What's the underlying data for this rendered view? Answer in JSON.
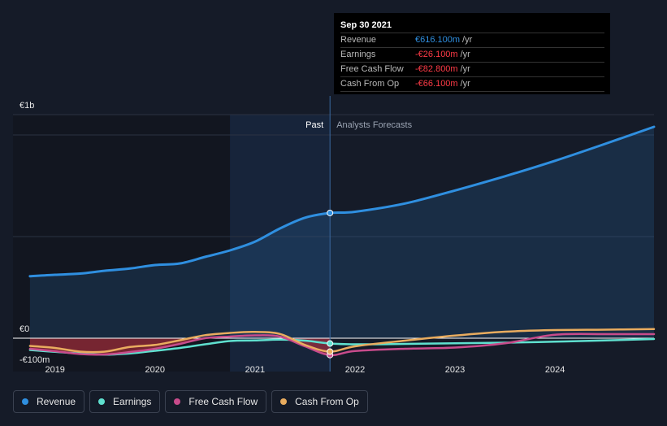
{
  "chart_data": {
    "type": "line",
    "y_unit": "€",
    "ylim": [
      -100,
      1000
    ],
    "y_ticks": [
      {
        "value": 1000,
        "label": "€1b"
      },
      {
        "value": 0,
        "label": "€0"
      },
      {
        "value": -100,
        "label": "-€100m"
      }
    ],
    "x_range": [
      2018.58,
      2024.99
    ],
    "x_ticks": [
      "2019",
      "2020",
      "2021",
      "2022",
      "2023",
      "2024"
    ],
    "divider_x": 2021.75,
    "past_label": "Past",
    "forecast_label": "Analysts Forecasts",
    "series": [
      {
        "name": "Revenue",
        "color": "#2f8fe0",
        "points": [
          [
            2018.75,
            305
          ],
          [
            2019.0,
            312
          ],
          [
            2019.25,
            318
          ],
          [
            2019.5,
            332
          ],
          [
            2019.75,
            343
          ],
          [
            2020.0,
            360
          ],
          [
            2020.25,
            368
          ],
          [
            2020.5,
            400
          ],
          [
            2020.75,
            432
          ],
          [
            2021.0,
            475
          ],
          [
            2021.25,
            540
          ],
          [
            2021.5,
            593
          ],
          [
            2021.75,
            616.1
          ],
          [
            2022.0,
            622
          ],
          [
            2022.5,
            663
          ],
          [
            2023.0,
            727
          ],
          [
            2023.5,
            797
          ],
          [
            2024.0,
            873
          ],
          [
            2024.5,
            956
          ],
          [
            2024.99,
            1040
          ]
        ]
      },
      {
        "name": "Earnings",
        "color": "#5fe0cf",
        "points": [
          [
            2018.75,
            -58
          ],
          [
            2019.0,
            -67
          ],
          [
            2019.25,
            -75
          ],
          [
            2019.5,
            -81
          ],
          [
            2019.75,
            -75
          ],
          [
            2020.0,
            -62
          ],
          [
            2020.25,
            -48
          ],
          [
            2020.5,
            -30
          ],
          [
            2020.75,
            -14
          ],
          [
            2021.0,
            -11
          ],
          [
            2021.25,
            -7
          ],
          [
            2021.5,
            -12
          ],
          [
            2021.75,
            -26.1
          ],
          [
            2022.0,
            -30
          ],
          [
            2022.5,
            -28
          ],
          [
            2023.0,
            -25
          ],
          [
            2023.5,
            -22
          ],
          [
            2024.0,
            -17
          ],
          [
            2024.5,
            -11
          ],
          [
            2024.99,
            -4
          ]
        ]
      },
      {
        "name": "Free Cash Flow",
        "color": "#c84b8b",
        "points": [
          [
            2018.75,
            -52
          ],
          [
            2019.0,
            -64
          ],
          [
            2019.25,
            -78
          ],
          [
            2019.5,
            -80
          ],
          [
            2019.75,
            -68
          ],
          [
            2020.0,
            -52
          ],
          [
            2020.25,
            -28
          ],
          [
            2020.5,
            0
          ],
          [
            2020.75,
            8
          ],
          [
            2021.0,
            14
          ],
          [
            2021.25,
            8
          ],
          [
            2021.5,
            -40
          ],
          [
            2021.75,
            -82.8
          ],
          [
            2022.0,
            -63
          ],
          [
            2022.5,
            -52
          ],
          [
            2023.0,
            -46
          ],
          [
            2023.5,
            -25
          ],
          [
            2024.0,
            17
          ],
          [
            2024.5,
            20
          ],
          [
            2024.99,
            20
          ]
        ]
      },
      {
        "name": "Cash From Op",
        "color": "#e9ac5f",
        "points": [
          [
            2018.75,
            -38
          ],
          [
            2019.0,
            -48
          ],
          [
            2019.25,
            -66
          ],
          [
            2019.5,
            -66
          ],
          [
            2019.75,
            -43
          ],
          [
            2020.0,
            -33
          ],
          [
            2020.25,
            -10
          ],
          [
            2020.5,
            15
          ],
          [
            2020.75,
            26
          ],
          [
            2021.0,
            31
          ],
          [
            2021.25,
            21
          ],
          [
            2021.5,
            -33
          ],
          [
            2021.75,
            -66.1
          ],
          [
            2022.0,
            -40
          ],
          [
            2022.5,
            -12
          ],
          [
            2023.0,
            13
          ],
          [
            2023.5,
            32
          ],
          [
            2024.0,
            40
          ],
          [
            2024.5,
            42
          ],
          [
            2024.99,
            45
          ]
        ]
      }
    ],
    "tooltip": {
      "date": "Sep 30 2021",
      "unit": "/yr",
      "rows": [
        {
          "label": "Revenue",
          "value": "€616.100m",
          "color": "#2f8fe0"
        },
        {
          "label": "Earnings",
          "value": "-€26.100m",
          "color": "#ff3b47"
        },
        {
          "label": "Free Cash Flow",
          "value": "-€82.800m",
          "color": "#ff3b47"
        },
        {
          "label": "Cash From Op",
          "value": "-€66.100m",
          "color": "#ff3b47"
        }
      ]
    },
    "legend": [
      "Revenue",
      "Earnings",
      "Free Cash Flow",
      "Cash From Op"
    ]
  }
}
